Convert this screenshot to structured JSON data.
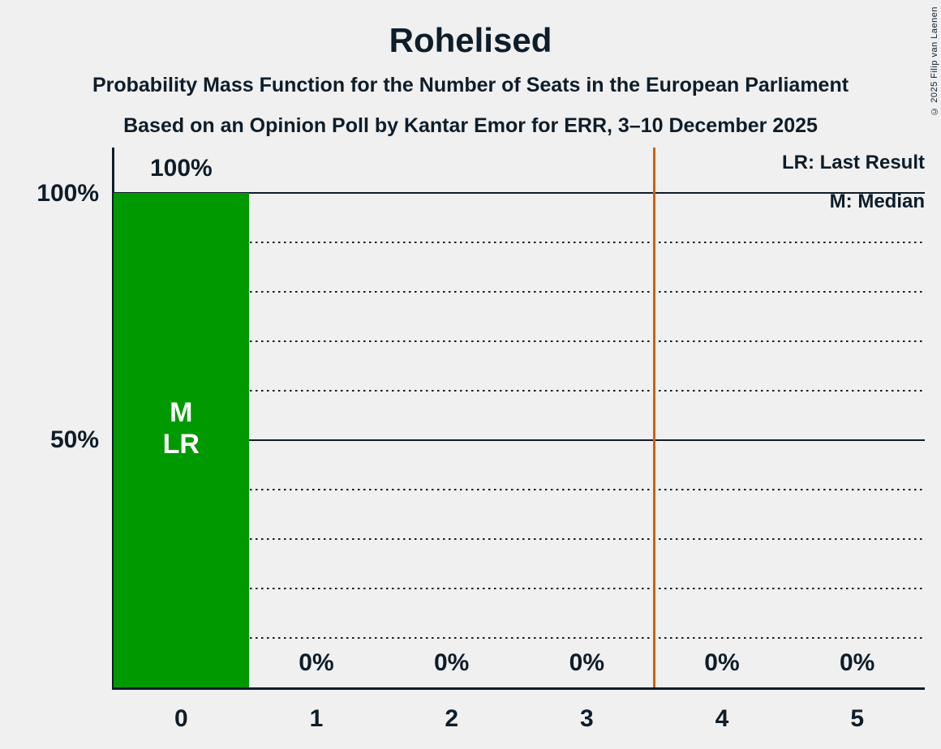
{
  "title": "Rohelised",
  "subtitles": {
    "line1": "Probability Mass Function for the Number of Seats in the European Parliament",
    "line2": "Based on an Opinion Poll by Kantar Emor for ERR, 3–10 December 2025"
  },
  "copyright": "© 2025 Filip van Laenen",
  "legend": {
    "last_result": "LR: Last Result",
    "median": "M: Median"
  },
  "y_axis": {
    "label_100": "100%",
    "label_50": "50%"
  },
  "chart_data": {
    "type": "bar",
    "title": "Rohelised",
    "categories": [
      "0",
      "1",
      "2",
      "3",
      "4",
      "5"
    ],
    "values": [
      100,
      0,
      0,
      0,
      0,
      0
    ],
    "value_labels": [
      "100%",
      "0%",
      "0%",
      "0%",
      "0%",
      "0%"
    ],
    "ylabel": "",
    "ylim": [
      0,
      109
    ],
    "grid": {
      "solid_percent": [
        100,
        50
      ],
      "dotted_percent": [
        90,
        80,
        70,
        60,
        40,
        30,
        20,
        10
      ]
    },
    "legend_position": "top-right",
    "median_marker": {
      "category": "0",
      "label": "M"
    },
    "last_result_marker": {
      "category": "0",
      "label": "LR"
    },
    "threshold_line_at_seats": 3.5,
    "colors": {
      "bar": "#009900",
      "bar_text": "#FFFFFF",
      "threshold_line": "#CD6210",
      "text": "#0E1D29",
      "background": "#F0F0F0"
    }
  }
}
